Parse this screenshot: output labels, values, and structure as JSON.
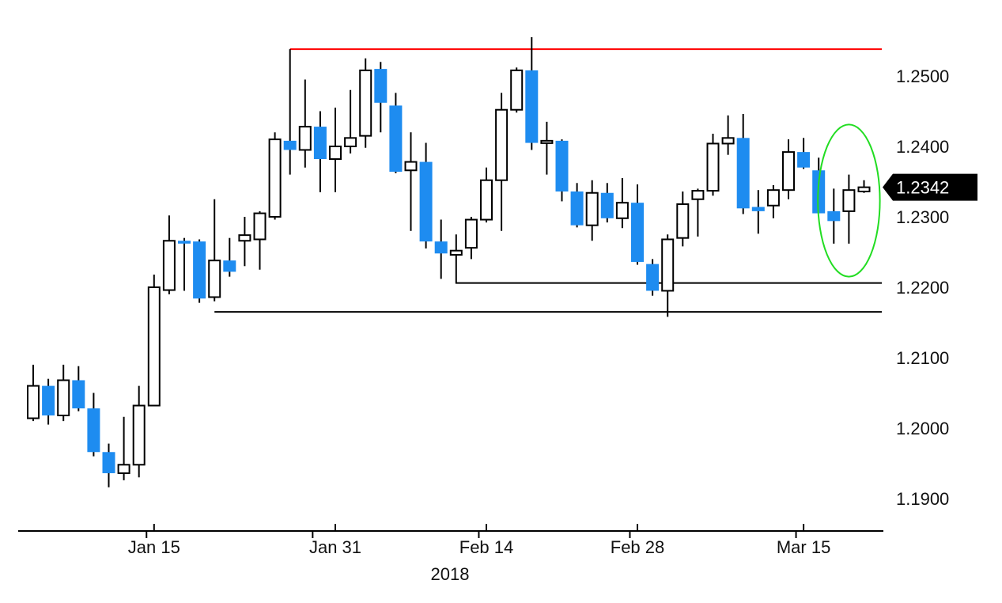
{
  "chart_data": {
    "type": "candlestick",
    "year_label": "2018",
    "x_tick_labels": [
      "Jan 15",
      "Jan 31",
      "Feb 14",
      "Feb 28",
      "Mar 15"
    ],
    "y_tick_labels": [
      "1.2500",
      "1.2400",
      "1.2300",
      "1.2200",
      "1.2100",
      "1.2000",
      "1.1900"
    ],
    "y_ticks": [
      1.25,
      1.24,
      1.23,
      1.22,
      1.21,
      1.2,
      1.19
    ],
    "ylim": [
      1.1855,
      1.258
    ],
    "last_price": 1.2342,
    "last_price_label": "1.2342",
    "grid": false,
    "colors": {
      "up_body": "#ffffff",
      "down_body": "#1e8cf0",
      "wick": "#000000",
      "resistance": "#ff0000",
      "support": "#000000",
      "highlight": "#22dd22",
      "price_tag": "#000000"
    },
    "candles": [
      {
        "date": "Jan 3",
        "open": 1.2014,
        "high": 1.209,
        "low": 1.201,
        "close": 1.206
      },
      {
        "date": "Jan 4",
        "open": 1.206,
        "high": 1.207,
        "low": 1.2005,
        "close": 1.2018
      },
      {
        "date": "Jan 5",
        "open": 1.2018,
        "high": 1.209,
        "low": 1.201,
        "close": 1.2068
      },
      {
        "date": "Jan 8",
        "open": 1.2068,
        "high": 1.2088,
        "low": 1.2024,
        "close": 1.2028
      },
      {
        "date": "Jan 9",
        "open": 1.2028,
        "high": 1.205,
        "low": 1.196,
        "close": 1.1966
      },
      {
        "date": "Jan 10",
        "open": 1.1966,
        "high": 1.1978,
        "low": 1.1916,
        "close": 1.1936
      },
      {
        "date": "Jan 11",
        "open": 1.1936,
        "high": 1.2016,
        "low": 1.1926,
        "close": 1.1948
      },
      {
        "date": "Jan 12",
        "open": 1.1948,
        "high": 1.206,
        "low": 1.193,
        "close": 1.2032
      },
      {
        "date": "Jan 15",
        "open": 1.2032,
        "high": 1.2218,
        "low": 1.2032,
        "close": 1.22
      },
      {
        "date": "Jan 16",
        "open": 1.2196,
        "high": 1.2302,
        "low": 1.219,
        "close": 1.2266
      },
      {
        "date": "Jan 17",
        "open": 1.2266,
        "high": 1.227,
        "low": 1.2195,
        "close": 1.2262
      },
      {
        "date": "Jan 18",
        "open": 1.2265,
        "high": 1.2268,
        "low": 1.2178,
        "close": 1.2184
      },
      {
        "date": "Jan 19",
        "open": 1.2186,
        "high": 1.2325,
        "low": 1.218,
        "close": 1.2238
      },
      {
        "date": "Jan 22",
        "open": 1.2238,
        "high": 1.227,
        "low": 1.2215,
        "close": 1.2222
      },
      {
        "date": "Jan 23",
        "open": 1.2266,
        "high": 1.23,
        "low": 1.223,
        "close": 1.2274
      },
      {
        "date": "Jan 24",
        "open": 1.2268,
        "high": 1.2308,
        "low": 1.2225,
        "close": 1.2305
      },
      {
        "date": "Jan 25",
        "open": 1.23,
        "high": 1.242,
        "low": 1.2296,
        "close": 1.241
      },
      {
        "date": "Jan 26",
        "open": 1.2408,
        "high": 1.2538,
        "low": 1.236,
        "close": 1.2395
      },
      {
        "date": "Jan 29",
        "open": 1.2395,
        "high": 1.2495,
        "low": 1.237,
        "close": 1.2428
      },
      {
        "date": "Jan 30",
        "open": 1.2428,
        "high": 1.245,
        "low": 1.2335,
        "close": 1.2382
      },
      {
        "date": "Jan 31",
        "open": 1.2382,
        "high": 1.2455,
        "low": 1.2335,
        "close": 1.24
      },
      {
        "date": "Feb 1",
        "open": 1.24,
        "high": 1.248,
        "low": 1.239,
        "close": 1.2412
      },
      {
        "date": "Feb 2",
        "open": 1.2415,
        "high": 1.2525,
        "low": 1.2398,
        "close": 1.2508
      },
      {
        "date": "Feb 5",
        "open": 1.251,
        "high": 1.252,
        "low": 1.242,
        "close": 1.2462
      },
      {
        "date": "Feb 6",
        "open": 1.2458,
        "high": 1.2476,
        "low": 1.2362,
        "close": 1.2364
      },
      {
        "date": "Feb 7",
        "open": 1.2366,
        "high": 1.242,
        "low": 1.228,
        "close": 1.2378
      },
      {
        "date": "Feb 8",
        "open": 1.2378,
        "high": 1.2405,
        "low": 1.2255,
        "close": 1.2265
      },
      {
        "date": "Feb 9",
        "open": 1.2265,
        "high": 1.2296,
        "low": 1.2212,
        "close": 1.2248
      },
      {
        "date": "Feb 12",
        "open": 1.2246,
        "high": 1.2275,
        "low": 1.2205,
        "close": 1.2252
      },
      {
        "date": "Feb 13",
        "open": 1.2256,
        "high": 1.23,
        "low": 1.224,
        "close": 1.2296
      },
      {
        "date": "Feb 14",
        "open": 1.2296,
        "high": 1.237,
        "low": 1.2292,
        "close": 1.2352
      },
      {
        "date": "Feb 15",
        "open": 1.2352,
        "high": 1.2476,
        "low": 1.228,
        "close": 1.2452
      },
      {
        "date": "Feb 16",
        "open": 1.2452,
        "high": 1.2512,
        "low": 1.2448,
        "close": 1.2508
      },
      {
        "date": "Feb 19",
        "open": 1.2508,
        "high": 1.2555,
        "low": 1.2395,
        "close": 1.2405
      },
      {
        "date": "Feb 20",
        "open": 1.2408,
        "high": 1.2435,
        "low": 1.236,
        "close": 1.2408
      },
      {
        "date": "Feb 21",
        "open": 1.2408,
        "high": 1.241,
        "low": 1.2322,
        "close": 1.2336
      },
      {
        "date": "Feb 22",
        "open": 1.2336,
        "high": 1.2348,
        "low": 1.2285,
        "close": 1.2288
      },
      {
        "date": "Feb 23",
        "open": 1.2288,
        "high": 1.2352,
        "low": 1.2266,
        "close": 1.2334
      },
      {
        "date": "Feb 26",
        "open": 1.2334,
        "high": 1.2348,
        "low": 1.2292,
        "close": 1.2298
      },
      {
        "date": "Feb 27",
        "open": 1.2298,
        "high": 1.2355,
        "low": 1.2284,
        "close": 1.232
      },
      {
        "date": "Feb 28",
        "open": 1.232,
        "high": 1.2346,
        "low": 1.2232,
        "close": 1.2236
      },
      {
        "date": "Mar 1",
        "open": 1.2233,
        "high": 1.224,
        "low": 1.2188,
        "close": 1.2195
      },
      {
        "date": "Mar 2",
        "open": 1.2195,
        "high": 1.2275,
        "low": 1.2158,
        "close": 1.2268
      },
      {
        "date": "Mar 5",
        "open": 1.227,
        "high": 1.2336,
        "low": 1.2258,
        "close": 1.2318
      },
      {
        "date": "Mar 6",
        "open": 1.2325,
        "high": 1.234,
        "low": 1.2272,
        "close": 1.2337
      },
      {
        "date": "Mar 7",
        "open": 1.2337,
        "high": 1.2418,
        "low": 1.233,
        "close": 1.2404
      },
      {
        "date": "Mar 8",
        "open": 1.2404,
        "high": 1.2444,
        "low": 1.2388,
        "close": 1.2412
      },
      {
        "date": "Mar 9",
        "open": 1.2412,
        "high": 1.2446,
        "low": 1.2304,
        "close": 1.2312
      },
      {
        "date": "Mar 12",
        "open": 1.2314,
        "high": 1.2338,
        "low": 1.2276,
        "close": 1.2308
      },
      {
        "date": "Mar 13",
        "open": 1.2316,
        "high": 1.2345,
        "low": 1.2298,
        "close": 1.2338
      },
      {
        "date": "Mar 14",
        "open": 1.2338,
        "high": 1.241,
        "low": 1.2325,
        "close": 1.2392
      },
      {
        "date": "Mar 15",
        "open": 1.2392,
        "high": 1.2412,
        "low": 1.2368,
        "close": 1.237
      },
      {
        "date": "Mar 16",
        "open": 1.2366,
        "high": 1.2384,
        "low": 1.2305,
        "close": 1.2305
      },
      {
        "date": "Mar 19",
        "open": 1.2308,
        "high": 1.234,
        "low": 1.2262,
        "close": 1.2294
      },
      {
        "date": "Mar 20",
        "open": 1.2308,
        "high": 1.236,
        "low": 1.2262,
        "close": 1.2338
      },
      {
        "date": "Mar 21",
        "open": 1.2336,
        "high": 1.2352,
        "low": 1.2334,
        "close": 1.2342
      }
    ],
    "lines": [
      {
        "name": "resistance",
        "value": 1.2538,
        "start_date": "Jan 26"
      },
      {
        "name": "support-upper",
        "value": 1.2206,
        "start_date": "Feb 12"
      },
      {
        "name": "support-lower",
        "value": 1.2165,
        "start_date": "Jan 19"
      }
    ],
    "highlight_ellipse": {
      "center_date": "Mar 20",
      "center_value": 1.2323,
      "span_candles": 4,
      "span_value": 0.0216
    }
  }
}
